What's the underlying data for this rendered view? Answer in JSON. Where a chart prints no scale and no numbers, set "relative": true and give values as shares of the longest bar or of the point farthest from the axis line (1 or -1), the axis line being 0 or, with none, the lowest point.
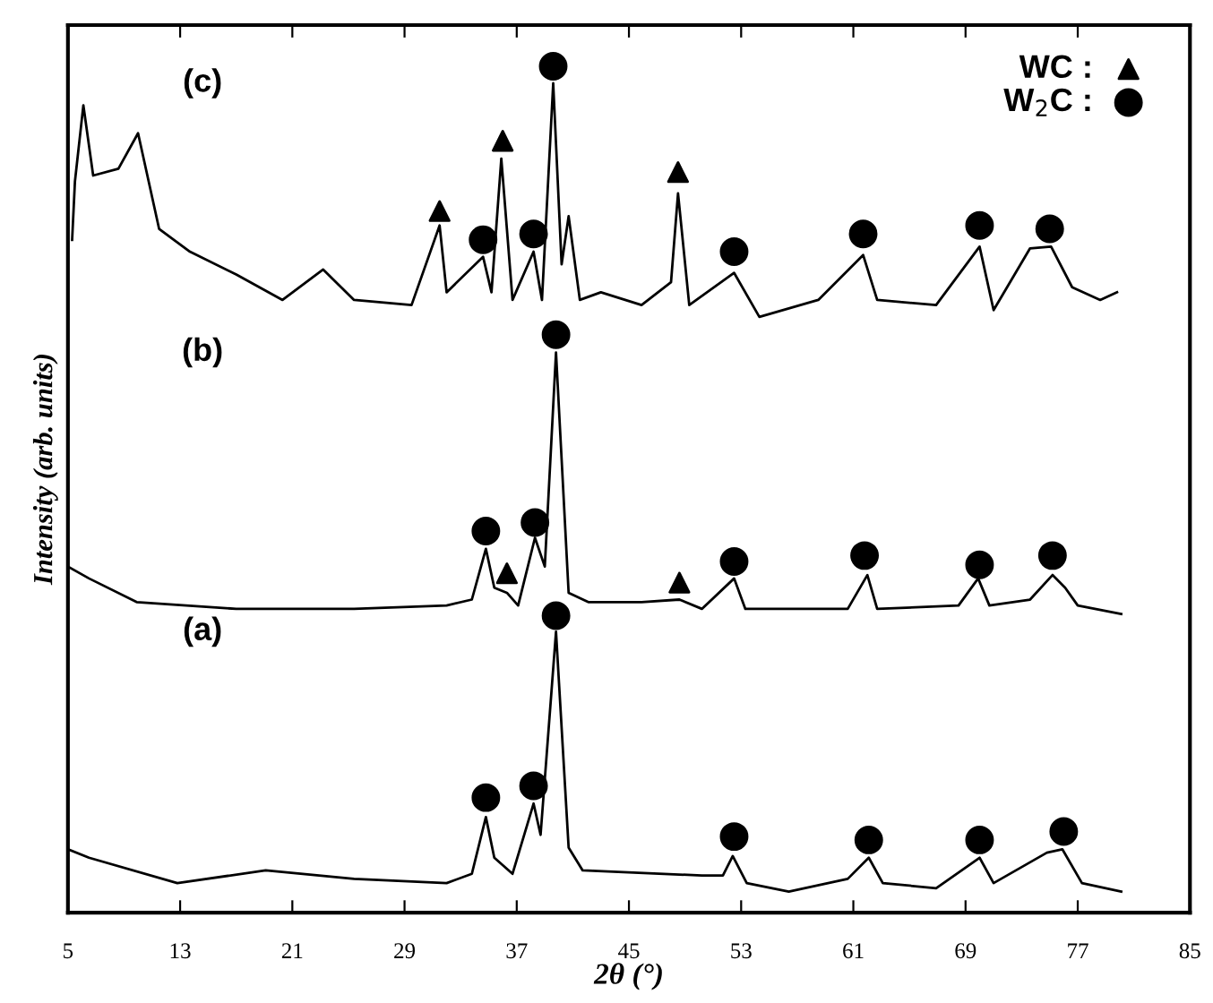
{
  "chart_data": {
    "type": "line",
    "relative": true,
    "xlabel": "2θ (°)",
    "ylabel": "Intensity (arb. units)",
    "xlim": [
      5,
      85
    ],
    "xticks": [
      5,
      13,
      21,
      29,
      37,
      45,
      53,
      61,
      69,
      77,
      85
    ],
    "grid": false,
    "annotations": [
      "(a)",
      "(b)",
      "(c)"
    ],
    "legend": "top right",
    "marker": "none",
    "line_style": "solid",
    "series": [
      {
        "color": "#000000",
        "x": [
          5.0,
          6.5,
          12.8,
          19.1,
          25.4,
          32.0,
          33.8,
          34.8,
          35.4,
          36.7,
          38.2,
          38.7,
          39.8,
          40.7,
          41.7,
          50.2,
          51.7,
          52.4,
          53.4,
          56.4,
          60.6,
          62.1,
          63.1,
          66.9,
          70.0,
          71.0,
          74.8,
          75.9,
          77.3,
          80.1
        ],
        "values": [
          0.075,
          0.065,
          0.035,
          0.05,
          0.04,
          0.035,
          0.046,
          0.113,
          0.065,
          0.046,
          0.129,
          0.092,
          0.332,
          0.077,
          0.05,
          0.044,
          0.044,
          0.067,
          0.035,
          0.025,
          0.04,
          0.065,
          0.035,
          0.029,
          0.065,
          0.035,
          0.071,
          0.075,
          0.035,
          0.025
        ]
      },
      {
        "color": "#000000",
        "x": [
          5.0,
          6.5,
          9.9,
          17.0,
          25.4,
          32.0,
          33.8,
          34.8,
          35.4,
          36.3,
          37.1,
          38.3,
          39.0,
          39.8,
          40.7,
          42.1,
          45.9,
          48.6,
          50.2,
          52.5,
          53.3,
          60.6,
          62.0,
          62.7,
          68.5,
          69.9,
          70.7,
          73.6,
          75.2,
          76.1,
          77.0,
          80.1
        ],
        "values": [
          0.409,
          0.395,
          0.367,
          0.359,
          0.359,
          0.363,
          0.37,
          0.43,
          0.384,
          0.378,
          0.363,
          0.443,
          0.409,
          0.662,
          0.378,
          0.367,
          0.367,
          0.37,
          0.359,
          0.395,
          0.359,
          0.359,
          0.399,
          0.359,
          0.363,
          0.395,
          0.363,
          0.37,
          0.399,
          0.384,
          0.363,
          0.353
        ]
      },
      {
        "color": "#000000",
        "x": [
          5.3,
          5.5,
          6.1,
          6.8,
          8.6,
          10.0,
          11.5,
          13.7,
          17.0,
          20.3,
          23.2,
          25.4,
          29.5,
          31.5,
          32.0,
          34.6,
          35.2,
          35.9,
          36.7,
          38.2,
          38.8,
          39.6,
          40.2,
          40.7,
          41.5,
          43.0,
          45.9,
          48.0,
          48.5,
          49.3,
          52.5,
          54.3,
          58.5,
          61.7,
          62.7,
          66.9,
          70.0,
          71.0,
          73.6,
          75.1,
          76.6,
          78.6,
          79.8
        ],
        "values": [
          0.795,
          0.864,
          0.954,
          0.871,
          0.879,
          0.921,
          0.808,
          0.781,
          0.754,
          0.724,
          0.76,
          0.724,
          0.718,
          0.812,
          0.733,
          0.775,
          0.733,
          0.891,
          0.724,
          0.781,
          0.724,
          0.98,
          0.766,
          0.823,
          0.724,
          0.733,
          0.718,
          0.745,
          0.85,
          0.718,
          0.756,
          0.704,
          0.724,
          0.777,
          0.724,
          0.718,
          0.787,
          0.712,
          0.785,
          0.787,
          0.739,
          0.724,
          0.733
        ]
      },
      {
        "type": "scatter",
        "name": "WC :",
        "marker": "triangle",
        "color": "#000000",
        "x": [
          31.5,
          36.0,
          48.5,
          36.3,
          48.6
        ],
        "values": [
          0.829,
          0.912,
          0.875,
          0.401,
          0.39
        ]
      },
      {
        "type": "scatter",
        "name": "W$_{2}$C :",
        "marker": "circle",
        "color": "#000000",
        "x": [
          34.6,
          38.2,
          39.6,
          52.5,
          61.7,
          70.0,
          75.0,
          34.8,
          38.3,
          39.8,
          52.5,
          61.8,
          70.0,
          75.2,
          34.8,
          38.2,
          39.8,
          52.5,
          62.1,
          70.0,
          76.0
        ],
        "values": [
          0.795,
          0.802,
          1.0,
          0.781,
          0.802,
          0.812,
          0.808,
          0.451,
          0.461,
          0.683,
          0.415,
          0.422,
          0.411,
          0.422,
          0.136,
          0.15,
          0.351,
          0.09,
          0.086,
          0.086,
          0.096
        ]
      }
    ]
  }
}
